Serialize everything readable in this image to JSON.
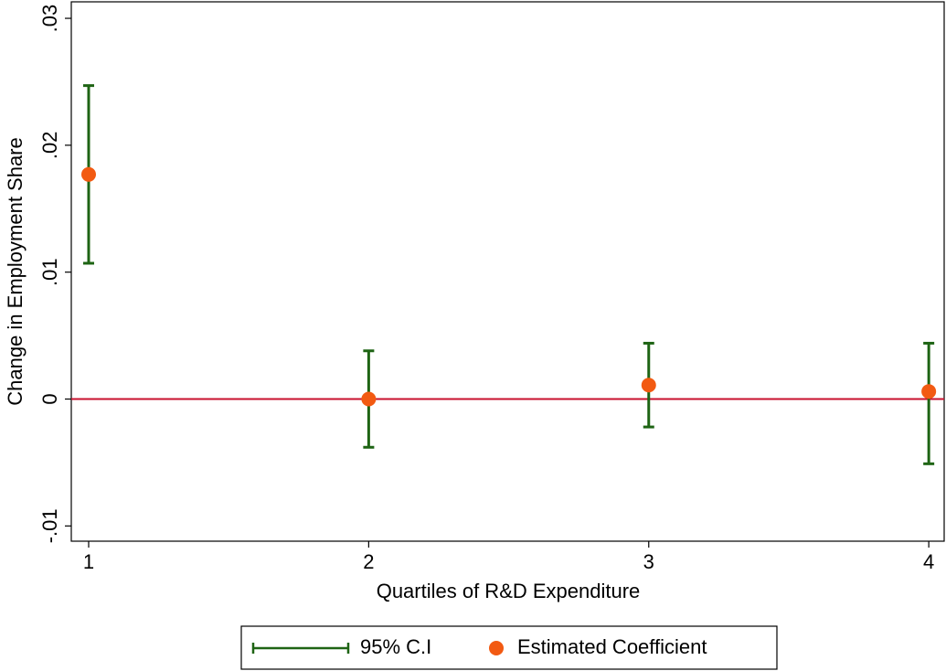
{
  "chart_data": {
    "type": "errorbar",
    "x_label": "Quartiles of R&D Expenditure",
    "y_label": "Change in Employment Share",
    "x": [
      1,
      2,
      3,
      4
    ],
    "series": [
      {
        "name": "95% C.I",
        "color": "#1e6414",
        "lower": [
          0.0107,
          -0.0038,
          -0.0022,
          -0.0051
        ],
        "upper": [
          0.0247,
          0.0038,
          0.0044,
          0.0044
        ]
      },
      {
        "name": "Estimated Coefficient",
        "color": "#f25a12",
        "values": [
          0.0177,
          0.0,
          0.0011,
          0.0006
        ]
      }
    ],
    "xlim": [
      0.938,
      4.055
    ],
    "ylim": [
      -0.0112,
      0.0313
    ],
    "xticks": [
      1,
      2,
      3,
      4
    ],
    "yticks": [
      {
        "value": -0.01,
        "label": "-.01"
      },
      0,
      {
        "value": 0.01,
        "label": ".01"
      },
      {
        "value": 0.02,
        "label": ".02"
      },
      {
        "value": 0.03,
        "label": ".03"
      }
    ],
    "reference_line": {
      "value": 0,
      "color": "#c8102e"
    },
    "legend": "bottom"
  }
}
